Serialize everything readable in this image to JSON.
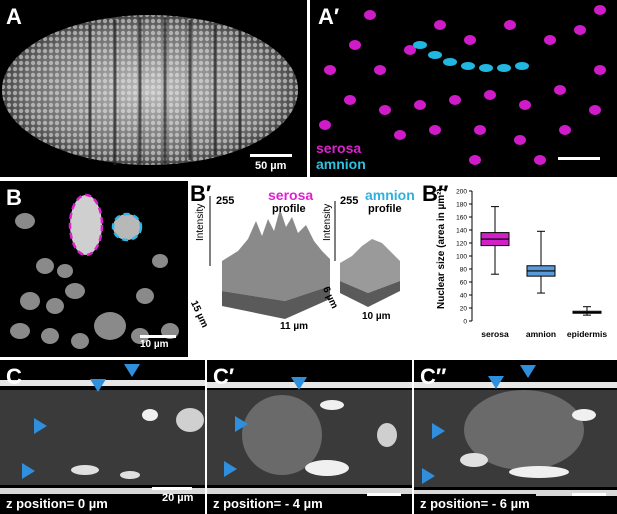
{
  "panel_A": {
    "label": "A",
    "scalebar": "50 µm"
  },
  "panel_A2": {
    "label": "A′",
    "legend": [
      {
        "name": "serosa",
        "color": "#e020d0"
      },
      {
        "name": "amnion",
        "color": "#30c0e0"
      }
    ]
  },
  "panel_B": {
    "label": "B",
    "scalebar": "10 µm"
  },
  "panel_B2": {
    "label": "B′",
    "serosa_profile": {
      "max": "255",
      "title": "serosa",
      "subtitle": "profile",
      "axis_y": "Intensity",
      "axis_a": "15 µm",
      "axis_b": "11 µm"
    },
    "amnion_profile": {
      "max": "255",
      "title": "amnion",
      "subtitle": "profile",
      "axis_y": "Intensity",
      "axis_a": "6 µm",
      "axis_b": "10 µm"
    }
  },
  "panel_B3": {
    "label": "B′′"
  },
  "chart_data": {
    "type": "box",
    "ylabel": "Nuclear size (area in µm²)",
    "ylim": [
      0,
      200
    ],
    "yticks": [
      0,
      20,
      40,
      60,
      80,
      100,
      120,
      140,
      160,
      180,
      200
    ],
    "categories": [
      "serosa",
      "amnion",
      "epidermis"
    ],
    "colors": [
      "#d020c8",
      "#5a9ad8",
      "#2f6b30"
    ],
    "boxes": [
      {
        "category": "serosa",
        "min": 72,
        "q1": 116,
        "median": 126,
        "q3": 136,
        "max": 176
      },
      {
        "category": "amnion",
        "min": 43,
        "q1": 69,
        "median": 77,
        "q3": 85,
        "max": 138
      },
      {
        "category": "epidermis",
        "min": 9,
        "q1": 12,
        "median": 13,
        "q3": 15,
        "max": 22
      }
    ]
  },
  "panel_C": {
    "label": "C",
    "z": "z position= 0 µm",
    "scalebar": "20 µm"
  },
  "panel_C2": {
    "label": "C′",
    "z": "z position= - 4 µm"
  },
  "panel_C3": {
    "label": "C′′",
    "z": "z position= - 6 µm"
  }
}
